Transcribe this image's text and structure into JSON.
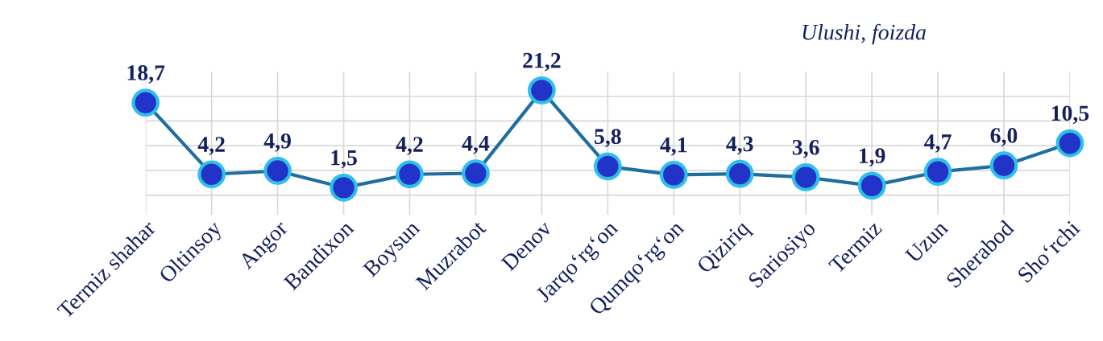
{
  "chart_data": {
    "type": "line",
    "categories": [
      "Termiz shahar",
      "Oltinsoy",
      "Angor",
      "Bandixon",
      "Boysun",
      "Muzrabot",
      "Denov",
      "Jarqo‘rg‘on",
      "Qumqo‘rg‘on",
      "Qiziriq",
      "Sariosiyo",
      "Termiz",
      "Uzun",
      "Sherabod",
      "Sho‘rchi"
    ],
    "series": [
      {
        "color": "#1f6e9e",
        "values": [
          18.7,
          4.2,
          4.9,
          1.5,
          4.2,
          4.4,
          21.2,
          5.8,
          4.1,
          4.3,
          3.6,
          1.9,
          4.7,
          6.0,
          10.5
        ],
        "value_labels": [
          "18,7",
          "4,2",
          "4,9",
          "1,5",
          "4,2",
          "4,4",
          "21,2",
          "5,8",
          "4,1",
          "4,3",
          "3,6",
          "1,9",
          "4,7",
          "6,0",
          "10,5"
        ]
      }
    ],
    "ylim": [
      -4,
      25
    ],
    "yticks": [
      {
        "value": 0,
        "label": null
      },
      {
        "value": 5,
        "label": null
      },
      {
        "value": 10,
        "label": null
      },
      {
        "value": 15,
        "label": null
      },
      {
        "value": 20,
        "label": null
      }
    ],
    "tick_labels": "x",
    "grid": true,
    "marker": "circle",
    "line_style": "solid",
    "annotations": [
      "Ulushi, foizda"
    ]
  }
}
